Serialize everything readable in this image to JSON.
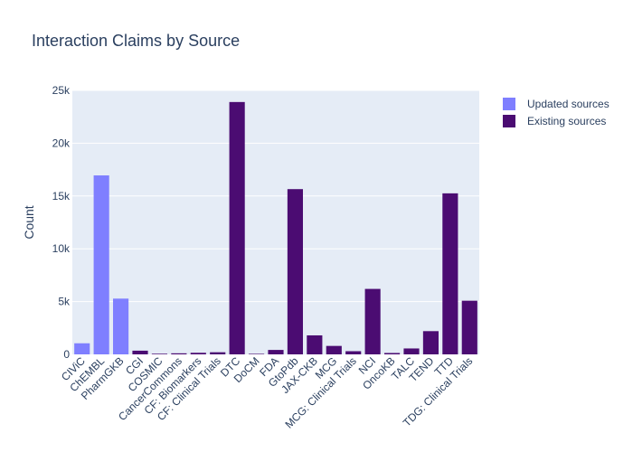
{
  "chart_data": {
    "type": "bar",
    "title": "Interaction Claims by Source",
    "xlabel": "",
    "ylabel": "Count",
    "ylim": [
      0,
      25000
    ],
    "yticks": [
      0,
      5000,
      10000,
      15000,
      20000,
      25000
    ],
    "ytick_labels": [
      "0",
      "5k",
      "10k",
      "15k",
      "20k",
      "25k"
    ],
    "grid": true,
    "legend_position": "top-right",
    "categories": [
      "CIViC",
      "ChEMBL",
      "PharmGKB",
      "CGI",
      "COSMIC",
      "CancerCommons",
      "CF: Biomarkers",
      "CF: Clinical Trials",
      "DTC",
      "DoCM",
      "FDA",
      "GtoPdb",
      "JAX-CKB",
      "MCG",
      "MCG: Clinical Trials",
      "NCI",
      "OncoKB",
      "TALC",
      "TEND",
      "TTD",
      "TDG: Clinical Trials"
    ],
    "series": [
      {
        "name": "Updated sources",
        "color": "#7f7fff",
        "values": [
          1050,
          16950,
          5280,
          null,
          null,
          null,
          null,
          null,
          null,
          null,
          null,
          null,
          null,
          null,
          null,
          null,
          null,
          null,
          null,
          null,
          null
        ]
      },
      {
        "name": "Existing sources",
        "color": "#4b0c72",
        "values": [
          null,
          null,
          null,
          350,
          60,
          100,
          150,
          200,
          23900,
          50,
          420,
          15650,
          1800,
          800,
          300,
          6200,
          130,
          560,
          2200,
          15250,
          5080
        ]
      }
    ]
  }
}
